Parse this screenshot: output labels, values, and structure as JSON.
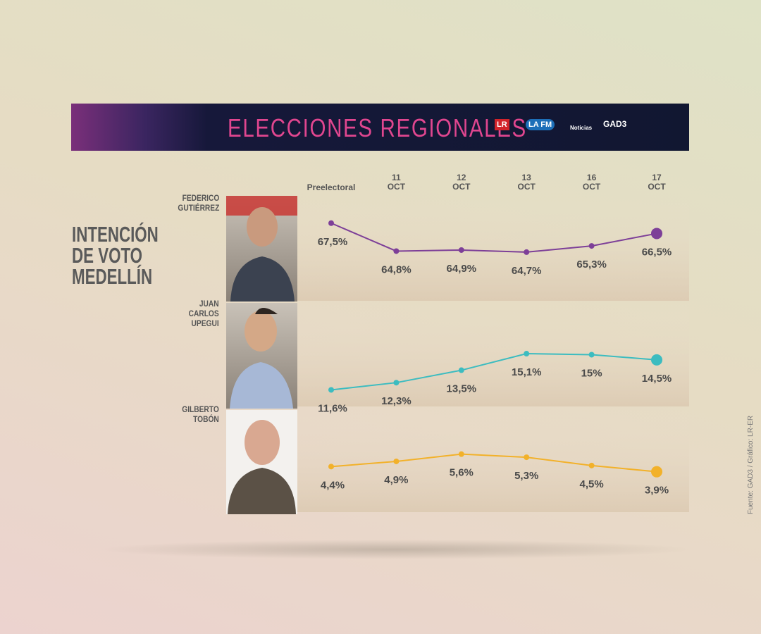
{
  "header": {
    "title": "ELECCIONES REGIONALES",
    "logos": [
      "LR",
      "LA FM",
      "Noticias",
      "GAD3"
    ]
  },
  "side_title": "INTENCIÓN DE VOTO MEDELLÍN",
  "categories": [
    "Preelectoral",
    "11 OCT",
    "12 OCT",
    "13 OCT",
    "16 OCT",
    "17 OCT"
  ],
  "source": "Fuente: GAD3 / Gráfico: LR-ER",
  "chart_data": [
    {
      "type": "line",
      "title": "FEDERICO GUTIÉRREZ",
      "color": "#7d3f98",
      "values": [
        67.5,
        64.8,
        64.9,
        64.7,
        65.3,
        66.5
      ],
      "value_labels": [
        "67,5%",
        "64,8%",
        "64,9%",
        "64,7%",
        "65,3%",
        "66,5%"
      ],
      "ylim": [
        60,
        70
      ]
    },
    {
      "type": "line",
      "title": "JUAN CARLOS UPEGUI",
      "color": "#3cbcc0",
      "values": [
        11.6,
        12.3,
        13.5,
        15.1,
        15,
        14.5
      ],
      "value_labels": [
        "11,6%",
        "12,3%",
        "13,5%",
        "15,1%",
        "15%",
        "14,5%"
      ],
      "ylim": [
        10,
        20
      ]
    },
    {
      "type": "line",
      "title": "GILBERTO TOBÓN",
      "color": "#f2b12a",
      "values": [
        4.4,
        4.9,
        5.6,
        5.3,
        4.5,
        3.9
      ],
      "value_labels": [
        "4,4%",
        "4,9%",
        "5,6%",
        "5,3%",
        "4,5%",
        "3,9%"
      ],
      "ylim": [
        0,
        10
      ]
    }
  ]
}
